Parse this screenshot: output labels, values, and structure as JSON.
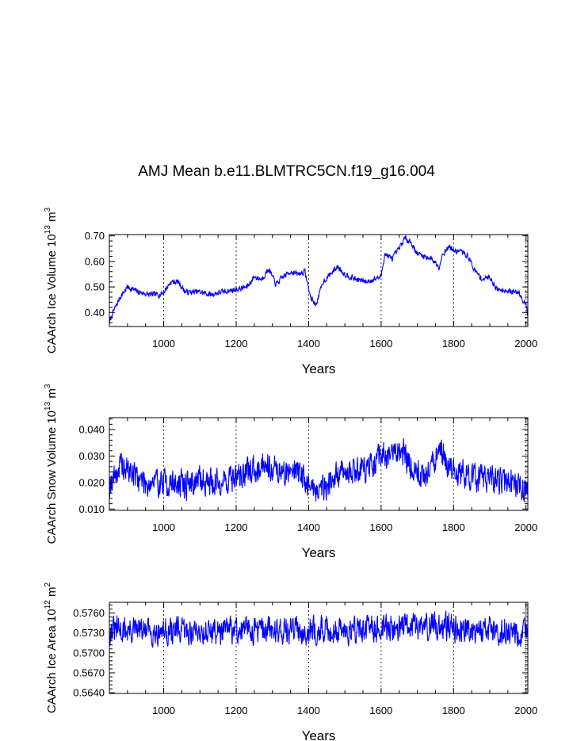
{
  "title": "AMJ Mean b.e11.BLMTRC5CN.f19_g16.004",
  "colors": {
    "line": "#0000ff",
    "axis": "#000000",
    "grid": "#000000"
  },
  "chart_data": [
    {
      "type": "line",
      "name": "ice-volume",
      "ylabel": "CAArch Ice Volume 10",
      "ylabel_exp": "13",
      "ylabel_unit": "m",
      "ylabel_unit_exp": "3",
      "xlabel": "Years",
      "xlim": [
        850,
        2005
      ],
      "ylim": [
        0.345,
        0.705
      ],
      "xticks": [
        1000,
        1200,
        1400,
        1600,
        1800,
        2000
      ],
      "xtick_labels": [
        "1000",
        "1200",
        "1400",
        "1600",
        "1800",
        "2000"
      ],
      "yticks": [
        0.4,
        0.5,
        0.6,
        0.7
      ],
      "ytick_labels": [
        "0.40",
        "0.50",
        "0.60",
        "0.70"
      ],
      "grid_x": true,
      "seed": 7,
      "noise": 0.01,
      "series": [
        {
          "name": "Ice Volume",
          "x": [
            850,
            860,
            880,
            900,
            930,
            960,
            990,
            1000,
            1020,
            1040,
            1060,
            1100,
            1130,
            1160,
            1200,
            1230,
            1250,
            1270,
            1290,
            1310,
            1330,
            1350,
            1370,
            1390,
            1405,
            1420,
            1440,
            1460,
            1480,
            1500,
            1530,
            1560,
            1580,
            1600,
            1610,
            1630,
            1650,
            1665,
            1680,
            1700,
            1720,
            1740,
            1760,
            1770,
            1790,
            1800,
            1820,
            1840,
            1860,
            1880,
            1900,
            1920,
            1940,
            1960,
            1980,
            2000,
            2004
          ],
          "values": [
            0.36,
            0.4,
            0.46,
            0.5,
            0.48,
            0.47,
            0.47,
            0.48,
            0.52,
            0.52,
            0.48,
            0.48,
            0.47,
            0.48,
            0.49,
            0.5,
            0.54,
            0.53,
            0.57,
            0.51,
            0.54,
            0.56,
            0.55,
            0.56,
            0.46,
            0.43,
            0.52,
            0.55,
            0.58,
            0.55,
            0.53,
            0.52,
            0.53,
            0.54,
            0.63,
            0.61,
            0.65,
            0.69,
            0.68,
            0.63,
            0.62,
            0.61,
            0.58,
            0.63,
            0.66,
            0.64,
            0.64,
            0.62,
            0.56,
            0.53,
            0.54,
            0.49,
            0.49,
            0.48,
            0.48,
            0.43,
            0.4
          ]
        }
      ]
    },
    {
      "type": "line",
      "name": "snow-volume",
      "ylabel": "CAArch Snow Volume 10",
      "ylabel_exp": "13",
      "ylabel_unit": "m",
      "ylabel_unit_exp": "3",
      "xlabel": "Years",
      "xlim": [
        850,
        2005
      ],
      "ylim": [
        0.0095,
        0.0445
      ],
      "xticks": [
        1000,
        1200,
        1400,
        1600,
        1800,
        2000
      ],
      "xtick_labels": [
        "1000",
        "1200",
        "1400",
        "1600",
        "1800",
        "2000"
      ],
      "yticks": [
        0.01,
        0.02,
        0.03,
        0.04
      ],
      "ytick_labels": [
        "0.010",
        "0.020",
        "0.030",
        "0.040"
      ],
      "grid_x": true,
      "seed": 19,
      "noise": 0.0048,
      "series": [
        {
          "name": "Snow Volume",
          "x": [
            850,
            880,
            910,
            950,
            1000,
            1050,
            1100,
            1150,
            1200,
            1250,
            1280,
            1300,
            1330,
            1360,
            1400,
            1430,
            1460,
            1500,
            1550,
            1580,
            1600,
            1620,
            1650,
            1665,
            1690,
            1720,
            1760,
            1780,
            1800,
            1850,
            1900,
            1950,
            2004
          ],
          "values": [
            0.02,
            0.026,
            0.024,
            0.02,
            0.02,
            0.019,
            0.021,
            0.02,
            0.022,
            0.025,
            0.028,
            0.026,
            0.023,
            0.026,
            0.019,
            0.017,
            0.021,
            0.024,
            0.026,
            0.025,
            0.031,
            0.029,
            0.033,
            0.031,
            0.025,
            0.022,
            0.031,
            0.028,
            0.024,
            0.022,
            0.021,
            0.02,
            0.017
          ]
        }
      ]
    },
    {
      "type": "line",
      "name": "ice-area",
      "ylabel": "CAArch Ice Area 10",
      "ylabel_exp": "12",
      "ylabel_unit": "m",
      "ylabel_unit_exp": "2",
      "xlabel": "Years",
      "xlim": [
        850,
        2005
      ],
      "ylim": [
        0.5639,
        0.5776
      ],
      "xticks": [
        1000,
        1200,
        1400,
        1600,
        1800,
        2000
      ],
      "xtick_labels": [
        "1000",
        "1200",
        "1400",
        "1600",
        "1800",
        "2000"
      ],
      "yticks": [
        0.564,
        0.567,
        0.57,
        0.573,
        0.576
      ],
      "ytick_labels": [
        "0.5640",
        "0.5670",
        "0.5700",
        "0.5730",
        "0.5760"
      ],
      "grid_x": true,
      "seed": 31,
      "noise": 0.0018,
      "series": [
        {
          "name": "Ice Area",
          "x": [
            850,
            950,
            1050,
            1150,
            1250,
            1350,
            1450,
            1550,
            1650,
            1750,
            1850,
            1950,
            2004
          ],
          "values": [
            0.5734,
            0.5733,
            0.5732,
            0.5733,
            0.5735,
            0.5734,
            0.5734,
            0.5735,
            0.5739,
            0.574,
            0.5737,
            0.5734,
            0.5727
          ]
        }
      ]
    }
  ]
}
